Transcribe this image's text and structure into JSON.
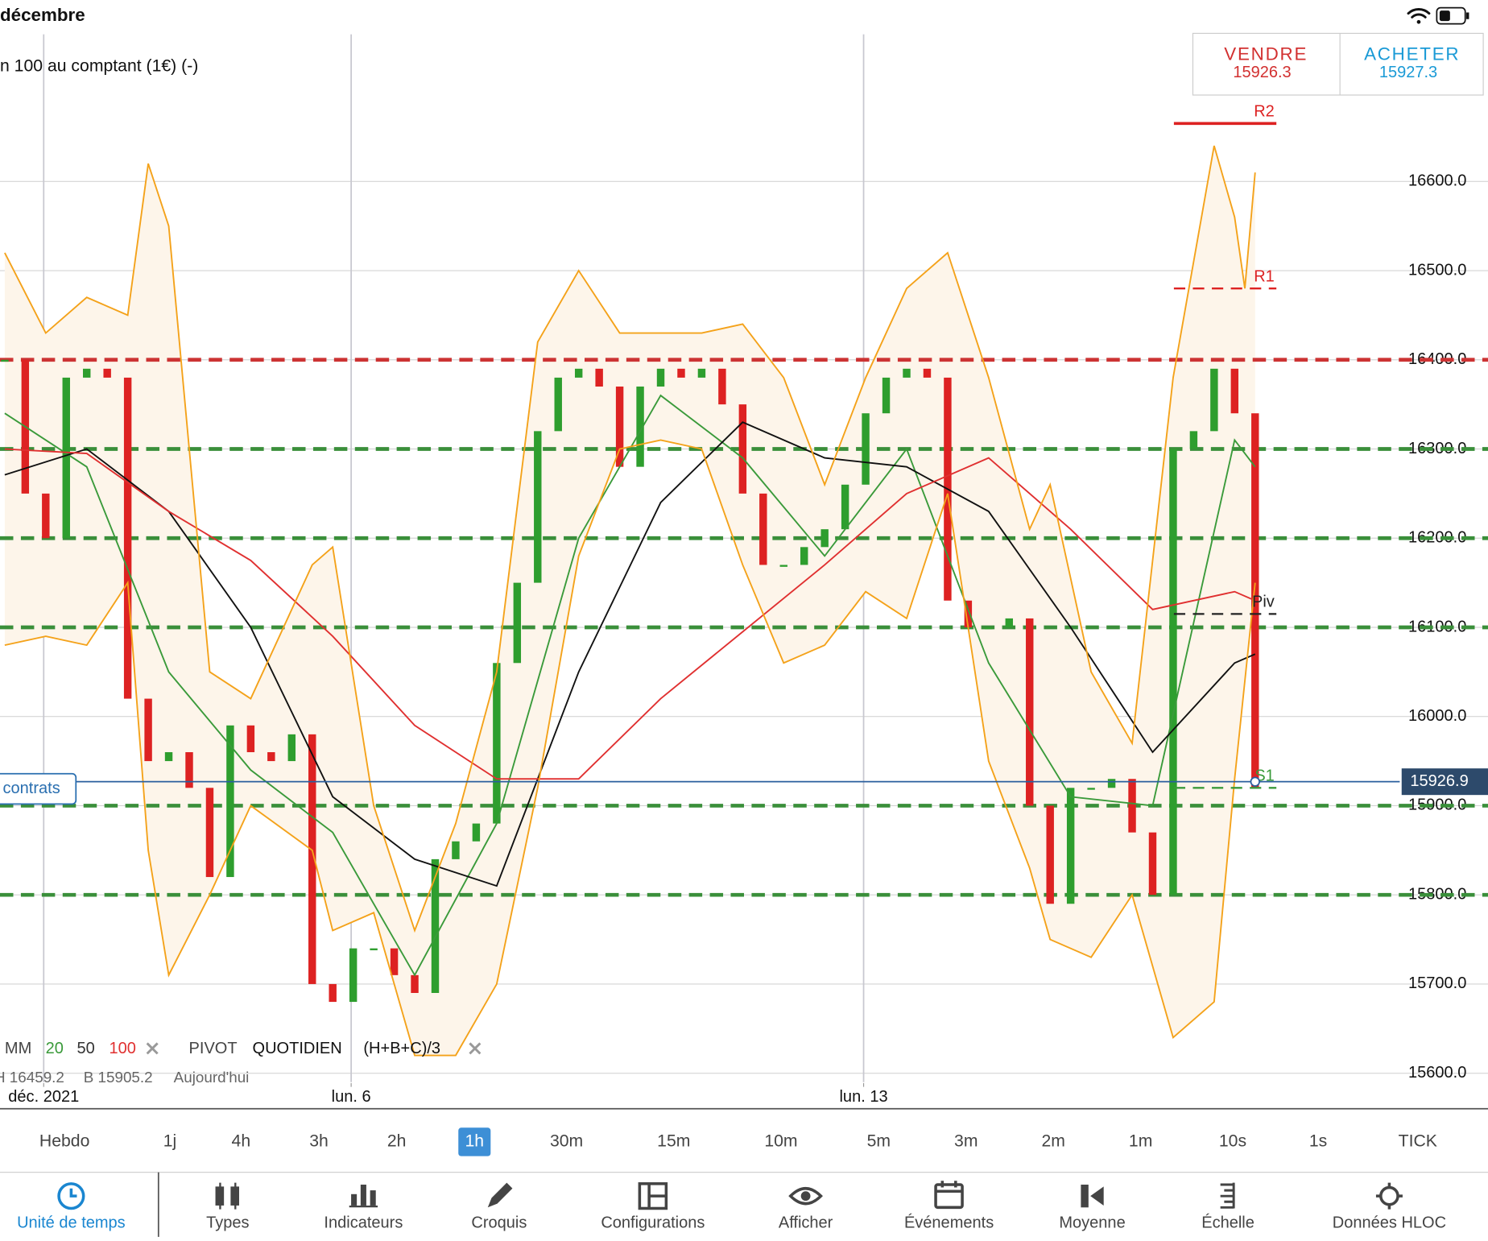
{
  "status_bar": {
    "date": "décembre"
  },
  "instrument": "n 100 au comptant (1€) (-)",
  "quote": {
    "sell_label": "VENDRE",
    "sell": 15926.3,
    "buy_label": "ACHETER",
    "buy": 15927.3
  },
  "position": {
    "label": "contrats"
  },
  "chart_data": {
    "type": "candlestick",
    "close": [
      16400,
      16250,
      16200,
      16380,
      16390,
      16380,
      16020,
      15950,
      15960,
      15920,
      15820,
      15990,
      15960,
      15950,
      15980,
      15700,
      15680,
      15740,
      15740,
      15710,
      15690,
      15840,
      15860,
      15880,
      16060,
      16150,
      16320,
      16380,
      16390,
      16370,
      16280,
      16370,
      16390,
      16380,
      16390,
      16350,
      16250,
      16170,
      16170,
      16190,
      16210,
      16260,
      16340,
      16380,
      16390,
      16380,
      16130,
      16100,
      16100,
      16110,
      15900,
      15790,
      15920,
      15920,
      15930,
      15870,
      15800,
      16300,
      16320,
      16390,
      16340,
      15920
    ],
    "up_color": "#2e9e2e",
    "down_color": "#dd2222",
    "ylim": [
      15590,
      16765
    ],
    "yticks": [
      {
        "value": 15600,
        "label": "15600.0"
      },
      {
        "value": 15700,
        "label": "15700.0"
      },
      {
        "value": 15800,
        "label": "15800.0"
      },
      {
        "value": 15900,
        "label": "15900.0"
      },
      {
        "value": 16000,
        "label": "16000.0"
      },
      {
        "value": 16100,
        "label": "16100.0"
      },
      {
        "value": 16200,
        "label": "16200.0"
      },
      {
        "value": 16300,
        "label": "16300.0"
      },
      {
        "value": 16400,
        "label": "16400.0"
      },
      {
        "value": 16500,
        "label": "16500.0"
      },
      {
        "value": 16600,
        "label": "16600.0"
      }
    ],
    "xticks": [
      {
        "value": 1.9,
        "label": "déc. 2021"
      },
      {
        "value": 16.9,
        "label": "lun. 6"
      },
      {
        "value": 41.9,
        "label": "lun. 13"
      }
    ],
    "grid": true,
    "last_price": 15926.9,
    "series": [
      {
        "name": "20",
        "color": "#3a9a3a",
        "x": [
          0,
          4,
          8,
          12,
          16,
          20,
          24,
          28,
          32,
          36,
          40,
          44,
          48,
          52,
          56,
          60,
          61
        ],
        "values": [
          16340,
          16280,
          16050,
          15940,
          15870,
          15710,
          15880,
          16200,
          16360,
          16290,
          16180,
          16300,
          16060,
          15910,
          15900,
          16310,
          16280
        ]
      },
      {
        "name": "50",
        "color": "#111111",
        "x": [
          0,
          4,
          8,
          12,
          16,
          20,
          24,
          28,
          32,
          36,
          40,
          44,
          48,
          52,
          56,
          60,
          61
        ],
        "values": [
          16271,
          16300,
          16230,
          16100,
          15910,
          15840,
          15810,
          16050,
          16240,
          16330,
          16290,
          16280,
          16230,
          16100,
          15960,
          16060,
          16070
        ]
      },
      {
        "name": "100",
        "color": "#e03030",
        "x": [
          0,
          4,
          8,
          12,
          16,
          20,
          24,
          28,
          32,
          36,
          40,
          44,
          48,
          52,
          56,
          60,
          61
        ],
        "values": [
          16300,
          16295,
          16230,
          16175,
          16090,
          15990,
          15930,
          15930,
          16020,
          16095,
          16170,
          16250,
          16290,
          16210,
          16120,
          16140,
          16130
        ]
      },
      {
        "color": "#f4a21a",
        "band": "upper",
        "x": [
          0,
          2,
          4,
          6,
          7,
          8,
          10,
          12,
          15,
          16,
          18,
          20,
          22,
          24,
          26,
          28,
          30,
          32,
          34,
          36,
          38,
          40,
          42,
          44,
          46,
          48,
          50,
          51,
          53,
          55,
          57,
          59,
          60,
          60.5,
          61
        ],
        "values": [
          16520,
          16430,
          16470,
          16450,
          16620,
          16550,
          16050,
          16020,
          16170,
          16190,
          15900,
          15760,
          15880,
          16050,
          16420,
          16500,
          16430,
          16430,
          16430,
          16440,
          16380,
          16260,
          16380,
          16480,
          16520,
          16380,
          16210,
          16260,
          16050,
          15970,
          16380,
          16640,
          16560,
          16480,
          16610
        ]
      },
      {
        "color": "#f4a21a",
        "band": "lower",
        "x": [
          0,
          2,
          4,
          6,
          7,
          8,
          10,
          12,
          15,
          16,
          18,
          20,
          22,
          24,
          26,
          28,
          30,
          32,
          34,
          36,
          38,
          40,
          42,
          44,
          46,
          48,
          50,
          51,
          53,
          55,
          57,
          59,
          60,
          61
        ],
        "values": [
          16080,
          16090,
          16080,
          16150,
          15850,
          15710,
          15800,
          15900,
          15850,
          15760,
          15780,
          15620,
          15620,
          15700,
          15920,
          16180,
          16300,
          16310,
          16300,
          16170,
          16060,
          16080,
          16140,
          16110,
          16250,
          15950,
          15830,
          15750,
          15730,
          15800,
          15640,
          15680,
          15930,
          16150
        ]
      }
    ],
    "levels": [
      {
        "value": 16400,
        "color": "#cc3333"
      },
      {
        "value": 16300,
        "color": "#3a8f3a"
      },
      {
        "value": 16200,
        "color": "#3a8f3a"
      },
      {
        "value": 16100,
        "color": "#3a8f3a"
      },
      {
        "value": 15900,
        "color": "#3a8f3a"
      },
      {
        "value": 15800,
        "color": "#3a8f3a"
      }
    ],
    "pivots": [
      {
        "name": "R2",
        "value": 16665,
        "color": "#dd2222",
        "style": "solid"
      },
      {
        "name": "R1",
        "value": 16480,
        "color": "#dd2222",
        "style": "dashed"
      },
      {
        "name": "Piv",
        "value": 16115,
        "color": "#222222",
        "style": "dashed"
      },
      {
        "name": "S1",
        "value": 15920,
        "color": "#3a9a3a",
        "style": "dashed"
      }
    ],
    "legend": {
      "ma_label": "MM",
      "pivot_label": "PIVOT",
      "pivot_period": "QUOTIDIEN",
      "pivot_formula": "(H+B+C)/3"
    },
    "session": [
      "H 16459.2",
      "B 15905.2",
      "Aujourd'hui"
    ]
  },
  "timeframes": {
    "items": [
      "Hebdo",
      "1j",
      "4h",
      "3h",
      "2h",
      "1h",
      "30m",
      "15m",
      "10m",
      "5m",
      "3m",
      "2m",
      "1m",
      "10s",
      "1s",
      "TICK"
    ],
    "selected": 5
  },
  "toolbar": {
    "items": [
      "Unité de temps",
      "Types",
      "Indicateurs",
      "Croquis",
      "Configurations",
      "Afficher",
      "Événements",
      "Moyenne",
      "Échelle",
      "Données HLOC"
    ],
    "active": 0
  }
}
